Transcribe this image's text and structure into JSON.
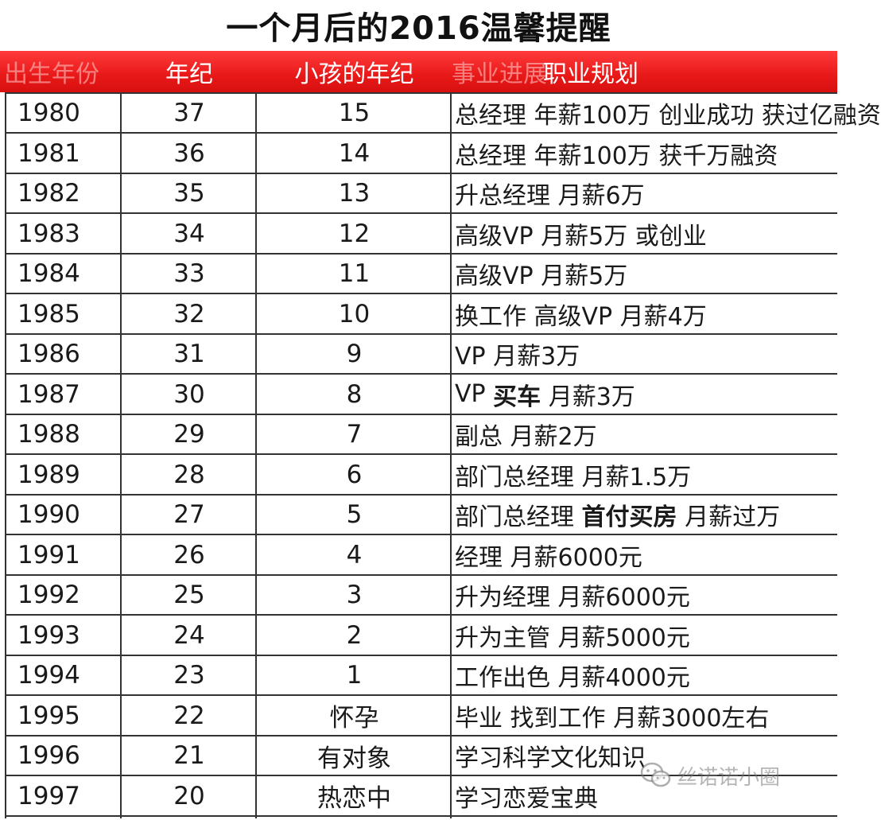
{
  "title": "一个月后的2016温馨提醒",
  "header": {
    "col_year": "出生年份",
    "col_age": "年纪",
    "col_child": "小孩的年纪",
    "col_stage": "事业进展",
    "col_plan": "职业规划"
  },
  "rows": [
    {
      "year": "1980",
      "age": "37",
      "child": "15",
      "plan": "总经理 年薪100万 创业成功 获过亿融资"
    },
    {
      "year": "1981",
      "age": "36",
      "child": "14",
      "plan": "总经理 年薪100万 获千万融资"
    },
    {
      "year": "1982",
      "age": "35",
      "child": "13",
      "plan": "升总经理 月薪6万"
    },
    {
      "year": "1983",
      "age": "34",
      "child": "12",
      "plan": "高级VP 月薪5万 或创业"
    },
    {
      "year": "1984",
      "age": "33",
      "child": "11",
      "plan": "高级VP 月薪5万"
    },
    {
      "year": "1985",
      "age": "32",
      "child": "10",
      "plan": "换工作 高级VP 月薪4万"
    },
    {
      "year": "1986",
      "age": "31",
      "child": "9",
      "plan": "VP 月薪3万"
    },
    {
      "year": "1987",
      "age": "30",
      "child": "8",
      "plan_pre": "VP ",
      "plan_bold": "买车",
      "plan_post": " 月薪3万"
    },
    {
      "year": "1988",
      "age": "29",
      "child": "7",
      "plan": "副总 月薪2万"
    },
    {
      "year": "1989",
      "age": "28",
      "child": "6",
      "plan": "部门总经理 月薪1.5万"
    },
    {
      "year": "1990",
      "age": "27",
      "child": "5",
      "plan_pre": "部门总经理 ",
      "plan_bold": "首付买房",
      "plan_post": " 月薪过万"
    },
    {
      "year": "1991",
      "age": "26",
      "child": "4",
      "plan": "经理 月薪6000元"
    },
    {
      "year": "1992",
      "age": "25",
      "child": "3",
      "plan": "升为经理 月薪6000元"
    },
    {
      "year": "1993",
      "age": "24",
      "child": "2",
      "plan": "升为主管 月薪5000元"
    },
    {
      "year": "1994",
      "age": "23",
      "child": "1",
      "plan": "工作出色 月薪4000元"
    },
    {
      "year": "1995",
      "age": "22",
      "child": "怀孕",
      "plan": "毕业 找到工作 月薪3000左右"
    },
    {
      "year": "1996",
      "age": "21",
      "child": "有对象",
      "plan": "学习科学文化知识"
    },
    {
      "year": "1997",
      "age": "20",
      "child": "热恋中",
      "plan": "学习恋爱宝典"
    }
  ],
  "watermark": {
    "text": "丝诺诺小圈",
    "icon": "wechat-icon"
  },
  "colors": {
    "header_bg": "#e81818",
    "header_text": "#ffffff",
    "grid": "#333333"
  }
}
